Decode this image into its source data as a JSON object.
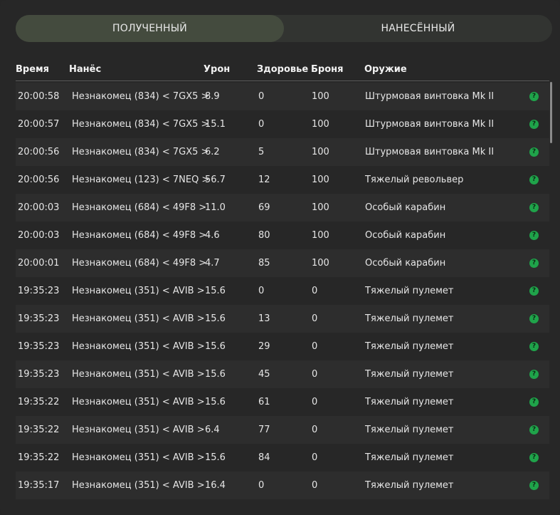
{
  "tabs": [
    {
      "label": "ПОЛУЧЕННЫЙ",
      "active": true
    },
    {
      "label": "НАНЕСЁННЫЙ",
      "active": false
    }
  ],
  "columns": {
    "time": "Время",
    "dealt_by": "Нанёс",
    "damage": "Урон",
    "health": "Здоровье",
    "armor": "Броня",
    "weapon": "Оружие"
  },
  "help_glyph": "?",
  "colors": {
    "help_icon": "#1fa34a",
    "active_tab": "#444b3e"
  },
  "rows": [
    {
      "time": "20:00:58",
      "dealt_by": "Незнакомец (834) < 7GX5 >",
      "damage": "8.9",
      "health": "0",
      "armor": "100",
      "weapon": "Штурмовая винтовка Mk II"
    },
    {
      "time": "20:00:57",
      "dealt_by": "Незнакомец (834) < 7GX5 >",
      "damage": "15.1",
      "health": "0",
      "armor": "100",
      "weapon": "Штурмовая винтовка Mk II"
    },
    {
      "time": "20:00:56",
      "dealt_by": "Незнакомец (834) < 7GX5 >",
      "damage": "6.2",
      "health": "5",
      "armor": "100",
      "weapon": "Штурмовая винтовка Mk II"
    },
    {
      "time": "20:00:56",
      "dealt_by": "Незнакомец (123) < 7NEQ >",
      "damage": "56.7",
      "health": "12",
      "armor": "100",
      "weapon": "Тяжелый револьвер"
    },
    {
      "time": "20:00:03",
      "dealt_by": "Незнакомец (684) < 49F8 >",
      "damage": "11.0",
      "health": "69",
      "armor": "100",
      "weapon": "Особый карабин"
    },
    {
      "time": "20:00:03",
      "dealt_by": "Незнакомец (684) < 49F8 >",
      "damage": "4.6",
      "health": "80",
      "armor": "100",
      "weapon": "Особый карабин"
    },
    {
      "time": "20:00:01",
      "dealt_by": "Незнакомец (684) < 49F8 >",
      "damage": "4.7",
      "health": "85",
      "armor": "100",
      "weapon": "Особый карабин"
    },
    {
      "time": "19:35:23",
      "dealt_by": "Незнакомец (351) < AVIB >",
      "damage": "15.6",
      "health": "0",
      "armor": "0",
      "weapon": "Тяжелый пулемет"
    },
    {
      "time": "19:35:23",
      "dealt_by": "Незнакомец (351) < AVIB >",
      "damage": "15.6",
      "health": "13",
      "armor": "0",
      "weapon": "Тяжелый пулемет"
    },
    {
      "time": "19:35:23",
      "dealt_by": "Незнакомец (351) < AVIB >",
      "damage": "15.6",
      "health": "29",
      "armor": "0",
      "weapon": "Тяжелый пулемет"
    },
    {
      "time": "19:35:23",
      "dealt_by": "Незнакомец (351) < AVIB >",
      "damage": "15.6",
      "health": "45",
      "armor": "0",
      "weapon": "Тяжелый пулемет"
    },
    {
      "time": "19:35:22",
      "dealt_by": "Незнакомец (351) < AVIB >",
      "damage": "15.6",
      "health": "61",
      "armor": "0",
      "weapon": "Тяжелый пулемет"
    },
    {
      "time": "19:35:22",
      "dealt_by": "Незнакомец (351) < AVIB >",
      "damage": "6.4",
      "health": "77",
      "armor": "0",
      "weapon": "Тяжелый пулемет"
    },
    {
      "time": "19:35:22",
      "dealt_by": "Незнакомец (351) < AVIB >",
      "damage": "15.6",
      "health": "84",
      "armor": "0",
      "weapon": "Тяжелый пулемет"
    },
    {
      "time": "19:35:17",
      "dealt_by": "Незнакомец (351) < AVIB >",
      "damage": "16.4",
      "health": "0",
      "armor": "0",
      "weapon": "Тяжелый пулемет"
    }
  ]
}
